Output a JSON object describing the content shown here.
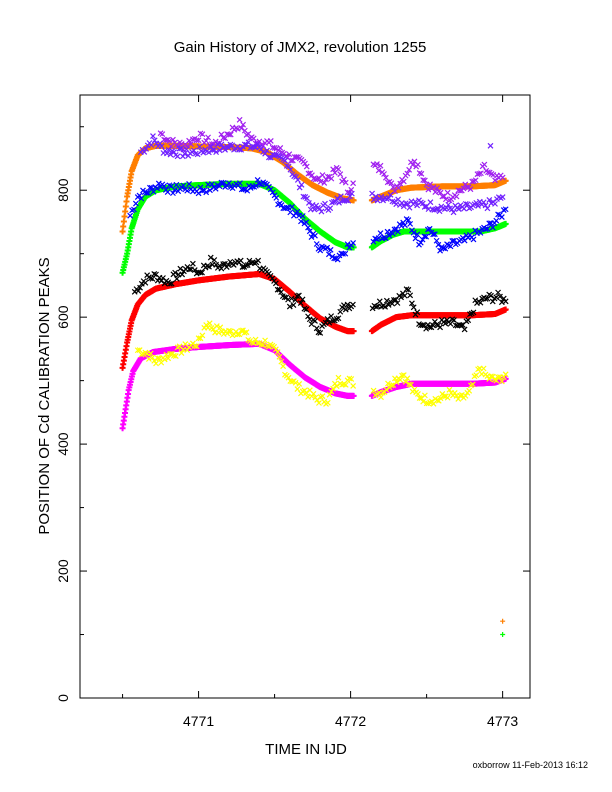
{
  "chart_data": {
    "type": "scatter",
    "title": "Gain History of JMX2, revolution 1255",
    "xlabel": "TIME IN IJD",
    "ylabel": "POSITION OF Cd CALIBRATION PEAKS",
    "xlim": [
      4770.22,
      4773.18
    ],
    "ylim": [
      0,
      950
    ],
    "xticks": [
      4771,
      4772,
      4773
    ],
    "xtick_labels": [
      "4771",
      "4772",
      "4773"
    ],
    "yticks": [
      0,
      200,
      400,
      600,
      800
    ],
    "ytick_labels": [
      "0",
      "200",
      "400",
      "600",
      "800"
    ],
    "footer": "oxborrow 11-Feb-2013 16:12",
    "gap": [
      4772.02,
      4772.14
    ],
    "series": [
      {
        "color": "#ff7f00",
        "marker": "plus",
        "role": "smooth",
        "points": [
          [
            4770.5,
            735
          ],
          [
            4770.53,
            790
          ],
          [
            4770.56,
            830
          ],
          [
            4770.6,
            855
          ],
          [
            4770.65,
            866
          ],
          [
            4770.72,
            870
          ],
          [
            4770.85,
            870
          ],
          [
            4771.0,
            869
          ],
          [
            4771.2,
            868
          ],
          [
            4771.35,
            866
          ],
          [
            4771.45,
            860
          ],
          [
            4771.55,
            845
          ],
          [
            4771.65,
            825
          ],
          [
            4771.75,
            808
          ],
          [
            4771.85,
            796
          ],
          [
            4771.95,
            787
          ],
          [
            4772.02,
            784
          ],
          [
            4772.14,
            784
          ],
          [
            4772.2,
            790
          ],
          [
            4772.3,
            800
          ],
          [
            4772.4,
            804
          ],
          [
            4772.6,
            806
          ],
          [
            4772.8,
            806
          ],
          [
            4772.95,
            808
          ],
          [
            4773.02,
            815
          ]
        ]
      },
      {
        "color": "#a020f0",
        "marker": "x",
        "role": "raw",
        "points": [
          [
            4770.75,
            890
          ],
          [
            4770.82,
            875
          ],
          [
            4770.9,
            870
          ],
          [
            4771.0,
            885
          ],
          [
            4771.1,
            872
          ],
          [
            4771.2,
            890
          ],
          [
            4771.27,
            905
          ],
          [
            4771.35,
            880
          ],
          [
            4771.45,
            875
          ],
          [
            4771.55,
            860
          ],
          [
            4771.62,
            850
          ],
          [
            4771.7,
            840
          ],
          [
            4771.78,
            815
          ],
          [
            4771.85,
            820
          ],
          [
            4771.92,
            832
          ],
          [
            4771.98,
            800
          ],
          [
            4772.15,
            838
          ],
          [
            4772.22,
            832
          ],
          [
            4772.28,
            800
          ],
          [
            4772.35,
            820
          ],
          [
            4772.42,
            850
          ],
          [
            4772.5,
            810
          ],
          [
            4772.58,
            795
          ],
          [
            4772.65,
            790
          ],
          [
            4772.72,
            800
          ],
          [
            4772.8,
            808
          ],
          [
            4772.88,
            835
          ],
          [
            4772.95,
            815
          ],
          [
            4773.0,
            820
          ]
        ]
      },
      {
        "color": "#7020ff",
        "marker": "x",
        "role": "raw",
        "points": [
          [
            4770.62,
            860
          ],
          [
            4770.7,
            880
          ],
          [
            4770.78,
            862
          ],
          [
            4770.92,
            858
          ],
          [
            4771.08,
            865
          ],
          [
            4771.28,
            870
          ],
          [
            4771.4,
            868
          ],
          [
            4771.5,
            850
          ],
          [
            4771.58,
            845
          ],
          [
            4771.75,
            770
          ],
          [
            4771.82,
            772
          ],
          [
            4771.9,
            780
          ],
          [
            4771.96,
            790
          ],
          [
            4772.25,
            790
          ],
          [
            4772.35,
            780
          ],
          [
            4772.45,
            778
          ],
          [
            4772.55,
            775
          ],
          [
            4772.62,
            772
          ],
          [
            4772.7,
            770
          ],
          [
            4772.85,
            775
          ],
          [
            4772.95,
            780
          ],
          [
            4773.0,
            790
          ],
          [
            4772.92,
            870
          ]
        ]
      },
      {
        "color": "#00ff00",
        "marker": "plus",
        "role": "smooth",
        "points": [
          [
            4770.5,
            670
          ],
          [
            4770.53,
            700
          ],
          [
            4770.56,
            740
          ],
          [
            4770.6,
            770
          ],
          [
            4770.65,
            790
          ],
          [
            4770.72,
            800
          ],
          [
            4770.85,
            806
          ],
          [
            4771.0,
            808
          ],
          [
            4771.2,
            810
          ],
          [
            4771.4,
            810
          ],
          [
            4771.5,
            800
          ],
          [
            4771.6,
            780
          ],
          [
            4771.7,
            755
          ],
          [
            4771.8,
            735
          ],
          [
            4771.9,
            718
          ],
          [
            4771.98,
            710
          ],
          [
            4772.02,
            710
          ],
          [
            4772.14,
            710
          ],
          [
            4772.2,
            720
          ],
          [
            4772.28,
            730
          ],
          [
            4772.35,
            735
          ],
          [
            4772.5,
            735
          ],
          [
            4772.7,
            735
          ],
          [
            4772.85,
            735
          ],
          [
            4772.95,
            740
          ],
          [
            4773.02,
            747
          ]
        ]
      },
      {
        "color": "#0000ff",
        "marker": "x",
        "role": "raw",
        "points": [
          [
            4770.55,
            760
          ],
          [
            4770.6,
            790
          ],
          [
            4770.68,
            800
          ],
          [
            4770.75,
            810
          ],
          [
            4770.82,
            800
          ],
          [
            4770.9,
            805
          ],
          [
            4771.0,
            800
          ],
          [
            4771.1,
            805
          ],
          [
            4771.2,
            812
          ],
          [
            4771.32,
            800
          ],
          [
            4771.4,
            815
          ],
          [
            4771.5,
            790
          ],
          [
            4771.58,
            770
          ],
          [
            4771.65,
            765
          ],
          [
            4771.72,
            740
          ],
          [
            4771.8,
            710
          ],
          [
            4771.88,
            700
          ],
          [
            4771.95,
            695
          ],
          [
            4771.98,
            715
          ],
          [
            4772.15,
            725
          ],
          [
            4772.22,
            730
          ],
          [
            4772.3,
            740
          ],
          [
            4772.38,
            750
          ],
          [
            4772.45,
            720
          ],
          [
            4772.52,
            740
          ],
          [
            4772.6,
            705
          ],
          [
            4772.68,
            715
          ],
          [
            4772.75,
            720
          ],
          [
            4772.82,
            730
          ],
          [
            4772.9,
            740
          ],
          [
            4772.97,
            755
          ],
          [
            4773.02,
            770
          ]
        ]
      },
      {
        "color": "#ff0000",
        "marker": "plus",
        "role": "smooth",
        "points": [
          [
            4770.5,
            520
          ],
          [
            4770.53,
            560
          ],
          [
            4770.56,
            595
          ],
          [
            4770.6,
            620
          ],
          [
            4770.65,
            635
          ],
          [
            4770.72,
            645
          ],
          [
            4770.85,
            652
          ],
          [
            4771.0,
            658
          ],
          [
            4771.2,
            664
          ],
          [
            4771.4,
            668
          ],
          [
            4771.5,
            660
          ],
          [
            4771.6,
            640
          ],
          [
            4771.7,
            618
          ],
          [
            4771.8,
            598
          ],
          [
            4771.9,
            585
          ],
          [
            4771.98,
            578
          ],
          [
            4772.02,
            578
          ],
          [
            4772.14,
            578
          ],
          [
            4772.2,
            588
          ],
          [
            4772.3,
            600
          ],
          [
            4772.4,
            603
          ],
          [
            4772.6,
            603
          ],
          [
            4772.8,
            603
          ],
          [
            4772.95,
            605
          ],
          [
            4773.02,
            612
          ]
        ]
      },
      {
        "color": "#000000",
        "marker": "x",
        "role": "raw",
        "points": [
          [
            4770.58,
            640
          ],
          [
            4770.65,
            660
          ],
          [
            4770.72,
            665
          ],
          [
            4770.8,
            655
          ],
          [
            4770.88,
            670
          ],
          [
            4770.95,
            680
          ],
          [
            4771.0,
            670
          ],
          [
            4771.08,
            688
          ],
          [
            4771.15,
            678
          ],
          [
            4771.22,
            690
          ],
          [
            4771.3,
            680
          ],
          [
            4771.38,
            690
          ],
          [
            4771.45,
            665
          ],
          [
            4771.52,
            650
          ],
          [
            4771.6,
            620
          ],
          [
            4771.66,
            635
          ],
          [
            4771.72,
            600
          ],
          [
            4771.8,
            580
          ],
          [
            4771.86,
            595
          ],
          [
            4771.92,
            605
          ],
          [
            4771.98,
            620
          ],
          [
            4772.18,
            620
          ],
          [
            4772.25,
            625
          ],
          [
            4772.32,
            630
          ],
          [
            4772.38,
            640
          ],
          [
            4772.45,
            595
          ],
          [
            4772.52,
            585
          ],
          [
            4772.6,
            590
          ],
          [
            4772.68,
            590
          ],
          [
            4772.75,
            580
          ],
          [
            4772.82,
            620
          ],
          [
            4772.9,
            630
          ],
          [
            4772.97,
            632
          ],
          [
            4773.02,
            625
          ]
        ]
      },
      {
        "color": "#ff00ff",
        "marker": "plus",
        "role": "smooth",
        "points": [
          [
            4770.5,
            425
          ],
          [
            4770.52,
            455
          ],
          [
            4770.54,
            485
          ],
          [
            4770.57,
            515
          ],
          [
            4770.62,
            535
          ],
          [
            4770.7,
            545
          ],
          [
            4770.85,
            550
          ],
          [
            4771.0,
            553
          ],
          [
            4771.2,
            556
          ],
          [
            4771.4,
            558
          ],
          [
            4771.5,
            548
          ],
          [
            4771.6,
            525
          ],
          [
            4771.7,
            505
          ],
          [
            4771.8,
            490
          ],
          [
            4771.9,
            480
          ],
          [
            4771.98,
            476
          ],
          [
            4772.02,
            476
          ],
          [
            4772.14,
            476
          ],
          [
            4772.2,
            482
          ],
          [
            4772.3,
            490
          ],
          [
            4772.4,
            495
          ],
          [
            4772.6,
            495
          ],
          [
            4772.8,
            495
          ],
          [
            4772.95,
            497
          ],
          [
            4773.02,
            503
          ]
        ]
      },
      {
        "color": "#ffff00",
        "marker": "x",
        "role": "raw",
        "points": [
          [
            4770.6,
            548
          ],
          [
            4770.65,
            545
          ],
          [
            4770.72,
            530
          ],
          [
            4770.8,
            540
          ],
          [
            4770.9,
            550
          ],
          [
            4771.0,
            560
          ],
          [
            4771.05,
            590
          ],
          [
            4771.12,
            580
          ],
          [
            4771.2,
            575
          ],
          [
            4771.28,
            580
          ],
          [
            4771.35,
            560
          ],
          [
            4771.45,
            560
          ],
          [
            4771.52,
            540
          ],
          [
            4771.58,
            510
          ],
          [
            4771.65,
            490
          ],
          [
            4771.72,
            480
          ],
          [
            4771.78,
            470
          ],
          [
            4771.85,
            470
          ],
          [
            4771.92,
            500
          ],
          [
            4771.98,
            500
          ],
          [
            4772.2,
            480
          ],
          [
            4772.28,
            500
          ],
          [
            4772.35,
            510
          ],
          [
            4772.42,
            480
          ],
          [
            4772.5,
            470
          ],
          [
            4772.58,
            470
          ],
          [
            4772.65,
            480
          ],
          [
            4772.72,
            470
          ],
          [
            4772.78,
            480
          ],
          [
            4772.85,
            520
          ],
          [
            4772.9,
            505
          ],
          [
            4772.97,
            500
          ],
          [
            4773.02,
            510
          ]
        ]
      },
      {
        "color": "#ff7f00",
        "marker": "plus",
        "role": "extra",
        "points": [
          [
            4773.0,
            121
          ]
        ]
      },
      {
        "color": "#00ff00",
        "marker": "plus",
        "role": "extra",
        "points": [
          [
            4773.0,
            100
          ]
        ]
      }
    ]
  }
}
